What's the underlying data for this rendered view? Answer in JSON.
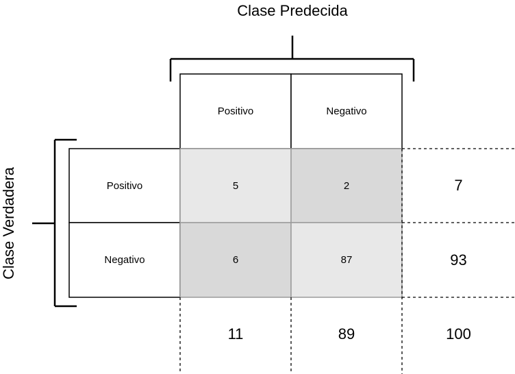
{
  "predicted_axis_title": "Clase Predecida",
  "true_axis_title": "Clase Verdadera",
  "column_headers": [
    "Positivo",
    "Negativo"
  ],
  "row_headers": [
    "Positivo",
    "Negativo"
  ],
  "cells": [
    [
      "5",
      "2"
    ],
    [
      "6",
      "87"
    ]
  ],
  "row_totals": [
    "7",
    "93"
  ],
  "column_totals": [
    "11",
    "89"
  ],
  "grand_total": "100",
  "colors": {
    "correct_fill": "#e8e8e8",
    "error_fill": "#d9d9d9",
    "line": "#000000"
  }
}
